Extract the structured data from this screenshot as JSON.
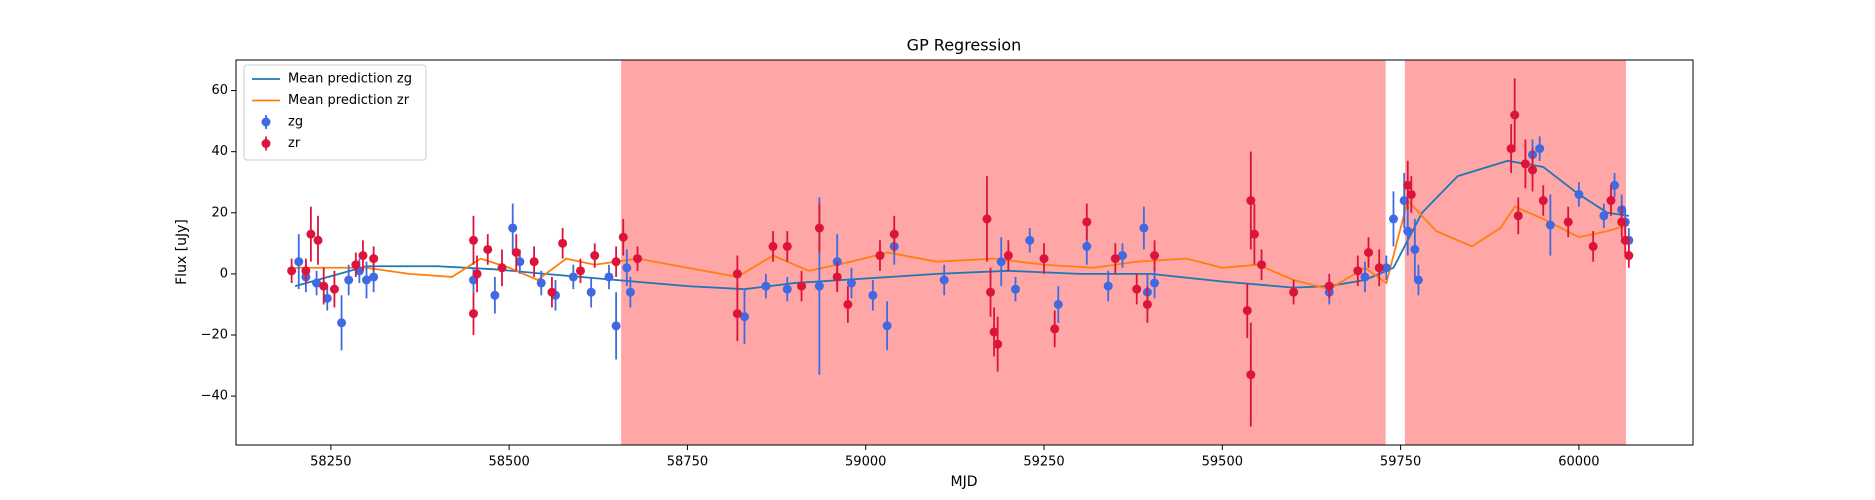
{
  "chart_data": {
    "type": "errorbar",
    "title": "GP Regression",
    "x_label": "MJD",
    "y_label": "Flux [uJy]",
    "xlim": [
      58117,
      60160
    ],
    "ylim": [
      -56,
      70
    ],
    "xticks": [
      58250,
      58500,
      58750,
      59000,
      59250,
      59500,
      59750,
      60000
    ],
    "yticks": [
      {
        "value": -40,
        "label": "−40"
      },
      {
        "value": -20,
        "label": "−20"
      },
      0,
      20,
      40,
      60
    ],
    "legend": "upper left",
    "shaded_regions": [
      {
        "xlim": [
          58657,
          59729
        ],
        "color": "#ff0000"
      },
      {
        "xlim": [
          59756,
          60066
        ],
        "color": "#ff0000"
      }
    ],
    "series": [
      {
        "name": "Mean prediction zg",
        "kind": "line",
        "color": "#1f77b4",
        "x": [
          58200,
          58300,
          58400,
          58480,
          58550,
          58650,
          58750,
          58830,
          58900,
          59000,
          59100,
          59200,
          59300,
          59400,
          59500,
          59600,
          59650,
          59700,
          59740,
          59780,
          59830,
          59900,
          59950,
          60000,
          60040,
          60070
        ],
        "values": [
          -4,
          2.5,
          2.5,
          1.5,
          0,
          -2,
          -4,
          -5,
          -3,
          -1.5,
          0,
          1,
          0,
          0,
          -2.5,
          -4.5,
          -4,
          -2,
          2,
          20,
          32,
          37,
          35,
          26,
          20,
          19
        ]
      },
      {
        "name": "Mean prediction zr",
        "kind": "line",
        "color": "#ff7f0e",
        "x": [
          58200,
          58300,
          58360,
          58420,
          58460,
          58500,
          58540,
          58580,
          58620,
          58680,
          58750,
          58820,
          58870,
          58920,
          58980,
          59030,
          59100,
          59180,
          59250,
          59320,
          59380,
          59450,
          59500,
          59550,
          59600,
          59650,
          59700,
          59730,
          59760,
          59800,
          59850,
          59890,
          59910,
          59950,
          60000,
          60040,
          60070
        ],
        "values": [
          2,
          2,
          0,
          -1,
          5,
          2,
          -2,
          5,
          3,
          5,
          2,
          -1,
          6,
          1,
          4,
          7,
          4,
          5,
          3,
          2,
          4,
          5,
          2,
          3,
          -2,
          -5,
          2,
          -3,
          24,
          14,
          9,
          15,
          22,
          18,
          12,
          14,
          16
        ]
      },
      {
        "name": "zg",
        "kind": "points",
        "color": "#4169e1",
        "x": [
          58205,
          58215,
          58230,
          58245,
          58265,
          58275,
          58290,
          58300,
          58310,
          58450,
          58480,
          58505,
          58515,
          58545,
          58565,
          58590,
          58615,
          58640,
          58650,
          58665,
          58670,
          58830,
          58860,
          58890,
          58935,
          58960,
          58980,
          59010,
          59030,
          59040,
          59110,
          59190,
          59210,
          59230,
          59270,
          59310,
          59340,
          59360,
          59390,
          59395,
          59405,
          59650,
          59700,
          59730,
          59740,
          59755,
          59760,
          59770,
          59775,
          59935,
          59945,
          59960,
          60000,
          60035,
          60050,
          60060,
          60065,
          60070
        ],
        "values": [
          4,
          -1,
          -3,
          -8,
          -16,
          -2,
          1,
          -2,
          -1,
          -2,
          -7,
          15,
          4,
          -3,
          -7,
          -1,
          -6,
          -1,
          -17,
          2,
          -6,
          -14,
          -4,
          -5,
          -4,
          4,
          -3,
          -7,
          -17,
          9,
          -2,
          4,
          -5,
          11,
          -10,
          9,
          -4,
          6,
          15,
          -6,
          -3,
          -6,
          -1,
          2,
          18,
          24,
          14,
          8,
          -2,
          39,
          41,
          16,
          26,
          19,
          29,
          21,
          17,
          11
        ],
        "errors": [
          9,
          5,
          4,
          4,
          9,
          5,
          4,
          6,
          5,
          4,
          6,
          8,
          4,
          4,
          5,
          4,
          5,
          4,
          11,
          6,
          5,
          9,
          4,
          4,
          29,
          9,
          5,
          5,
          8,
          6,
          5,
          8,
          4,
          4,
          6,
          6,
          5,
          4,
          7,
          6,
          5,
          4,
          5,
          4,
          9,
          9,
          8,
          10,
          5,
          5,
          4,
          10,
          4,
          4,
          4,
          5,
          4,
          4
        ]
      },
      {
        "name": "zr",
        "kind": "points",
        "color": "#dc143c",
        "x": [
          58195,
          58215,
          58222,
          58232,
          58240,
          58255,
          58285,
          58295,
          58310,
          58450,
          58450,
          58455,
          58470,
          58490,
          58510,
          58535,
          58560,
          58575,
          58600,
          58620,
          58650,
          58660,
          58680,
          58820,
          58820,
          58870,
          58890,
          58910,
          58935,
          58960,
          58975,
          59020,
          59040,
          59170,
          59175,
          59180,
          59185,
          59200,
          59250,
          59265,
          59310,
          59350,
          59380,
          59395,
          59405,
          59535,
          59540,
          59540,
          59545,
          59555,
          59600,
          59650,
          59690,
          59705,
          59720,
          59760,
          59765,
          59905,
          59910,
          59915,
          59925,
          59935,
          59950,
          59985,
          60020,
          60045,
          60060,
          60065,
          60070
        ],
        "values": [
          1,
          1,
          13,
          11,
          -4,
          -5,
          3,
          6,
          5,
          -13,
          11,
          0,
          8,
          2,
          7,
          4,
          -6,
          10,
          1,
          6,
          4,
          12,
          5,
          0,
          -13,
          9,
          9,
          -4,
          15,
          -1,
          -10,
          6,
          13,
          18,
          -6,
          -19,
          -23,
          6,
          5,
          -18,
          17,
          5,
          -5,
          -10,
          6,
          -12,
          -33,
          24,
          13,
          3,
          -6,
          -4,
          1,
          7,
          2,
          29,
          26,
          41,
          52,
          19,
          36,
          34,
          24,
          17,
          9,
          24,
          17,
          11,
          6
        ],
        "errors": [
          4,
          4,
          9,
          8,
          6,
          6,
          4,
          5,
          4,
          7,
          8,
          6,
          5,
          6,
          6,
          5,
          5,
          5,
          4,
          4,
          5,
          6,
          4,
          6,
          9,
          5,
          5,
          5,
          8,
          5,
          6,
          5,
          6,
          14,
          8,
          8,
          9,
          5,
          5,
          6,
          6,
          5,
          5,
          6,
          5,
          9,
          17,
          16,
          10,
          5,
          4,
          4,
          5,
          5,
          6,
          8,
          6,
          8,
          12,
          6,
          8,
          7,
          5,
          5,
          5,
          5,
          5,
          5,
          4
        ]
      }
    ]
  }
}
